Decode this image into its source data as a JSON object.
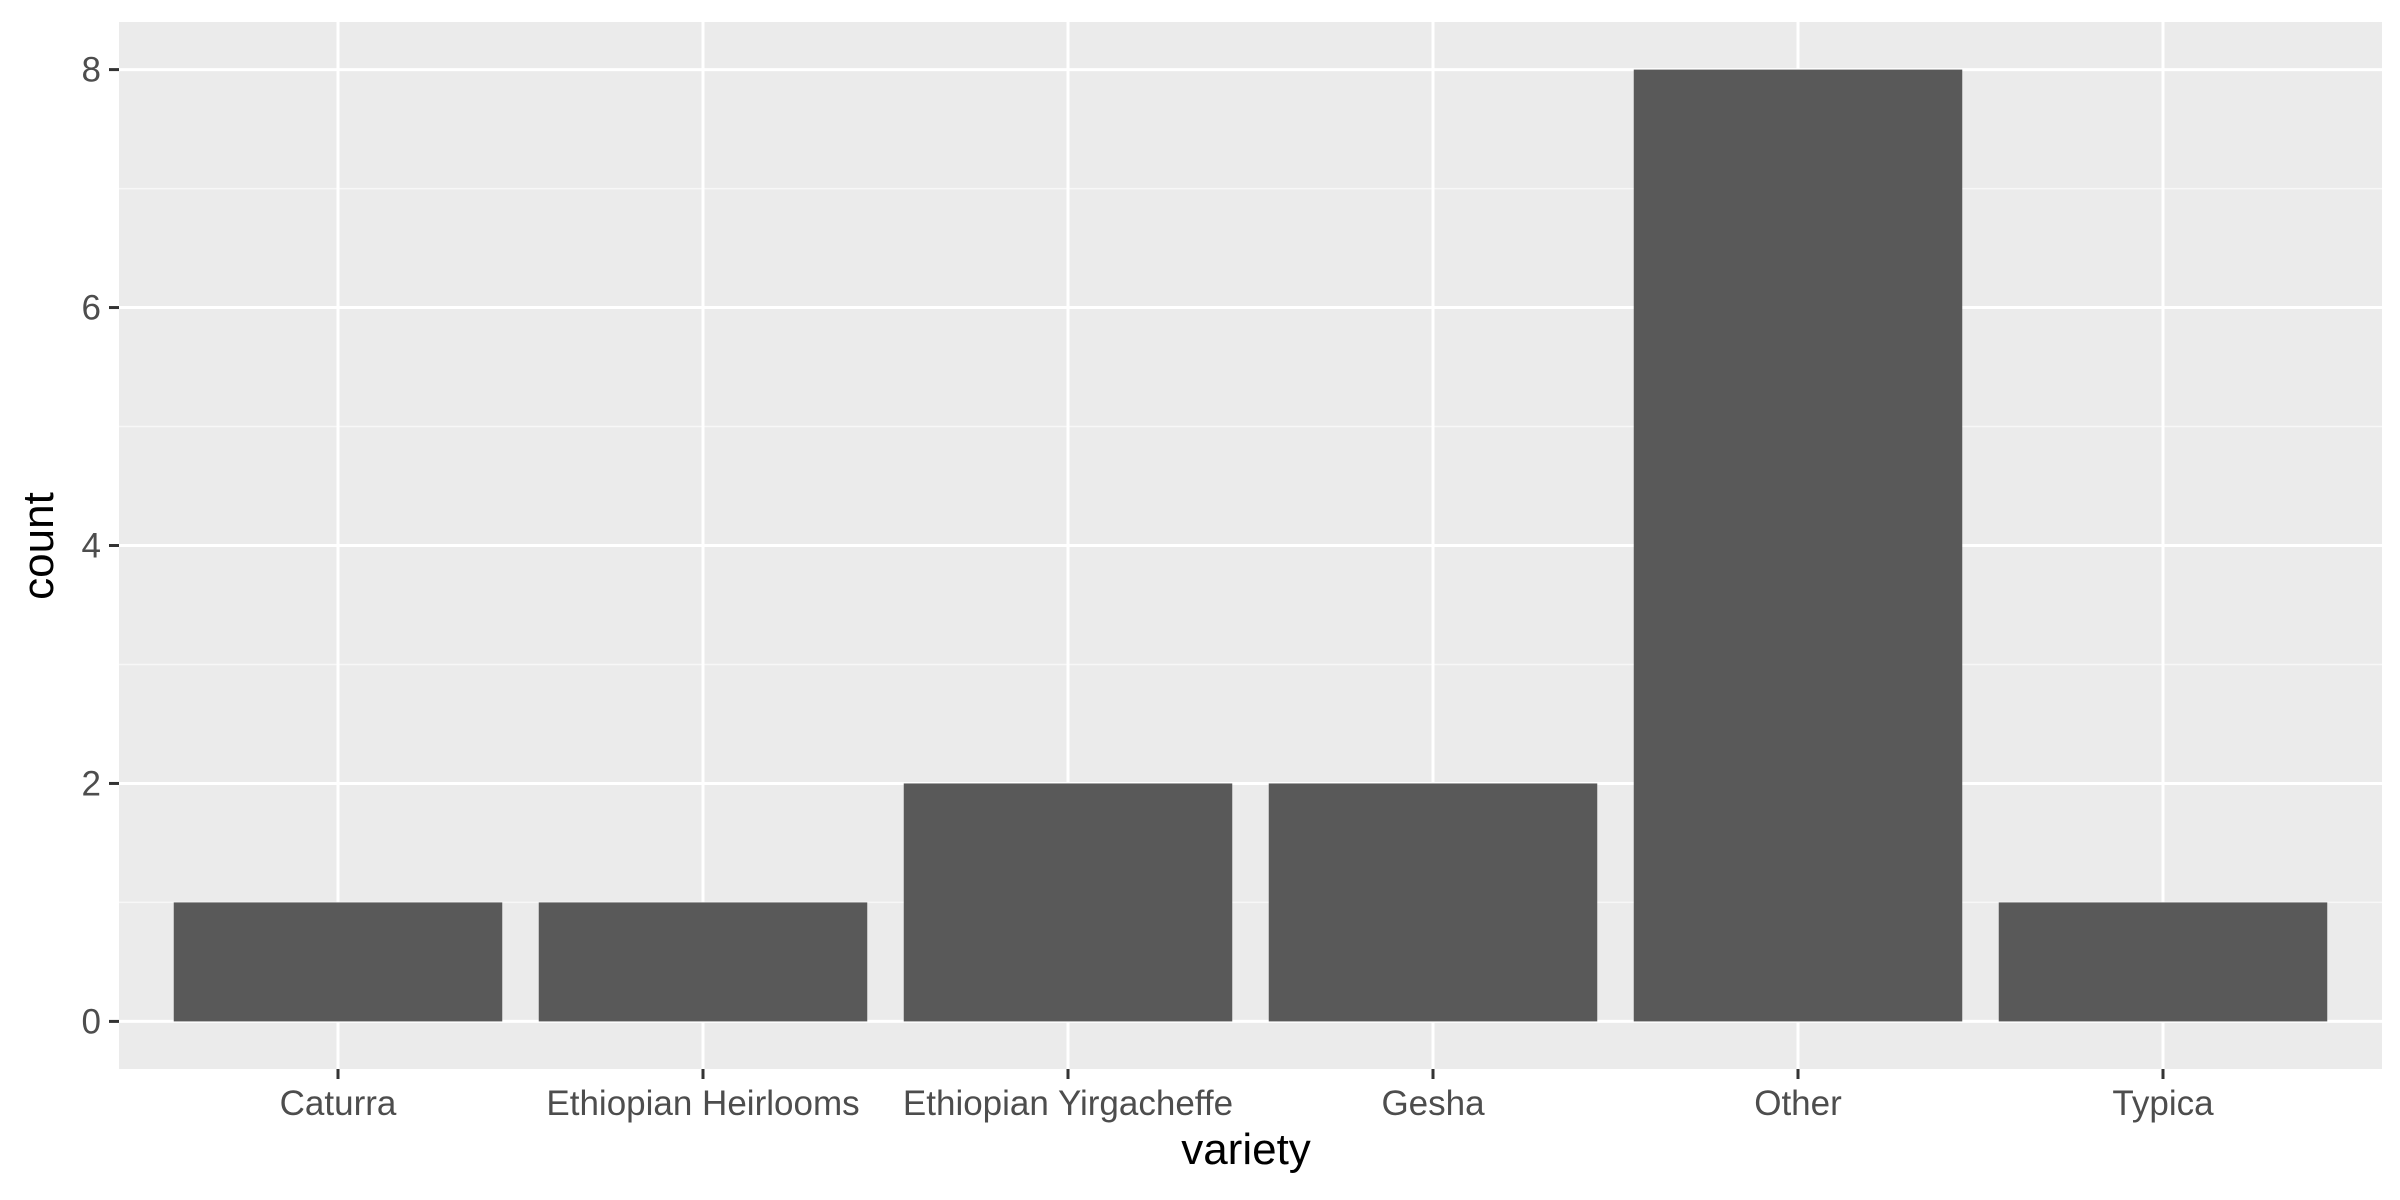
{
  "chart_data": {
    "type": "bar",
    "title": "",
    "xlabel": "variety",
    "ylabel": "count",
    "categories": [
      "Caturra",
      "Ethiopian Heirlooms",
      "Ethiopian Yirgacheffe",
      "Gesha",
      "Other",
      "Typica"
    ],
    "values": [
      1,
      1,
      2,
      2,
      8,
      1
    ],
    "ylim": [
      -0.4,
      8.4
    ],
    "yticks": [
      0,
      2,
      4,
      6,
      8
    ],
    "grid": true,
    "legend": "none",
    "colors": {
      "panel_background": "#ebebeb",
      "grid_major": "#ffffff",
      "grid_minor": "#f7f7f7",
      "bar_fill": "#595959",
      "tick_text": "#4d4d4d",
      "tick_mark": "#333333",
      "title_text": "#000000"
    }
  }
}
